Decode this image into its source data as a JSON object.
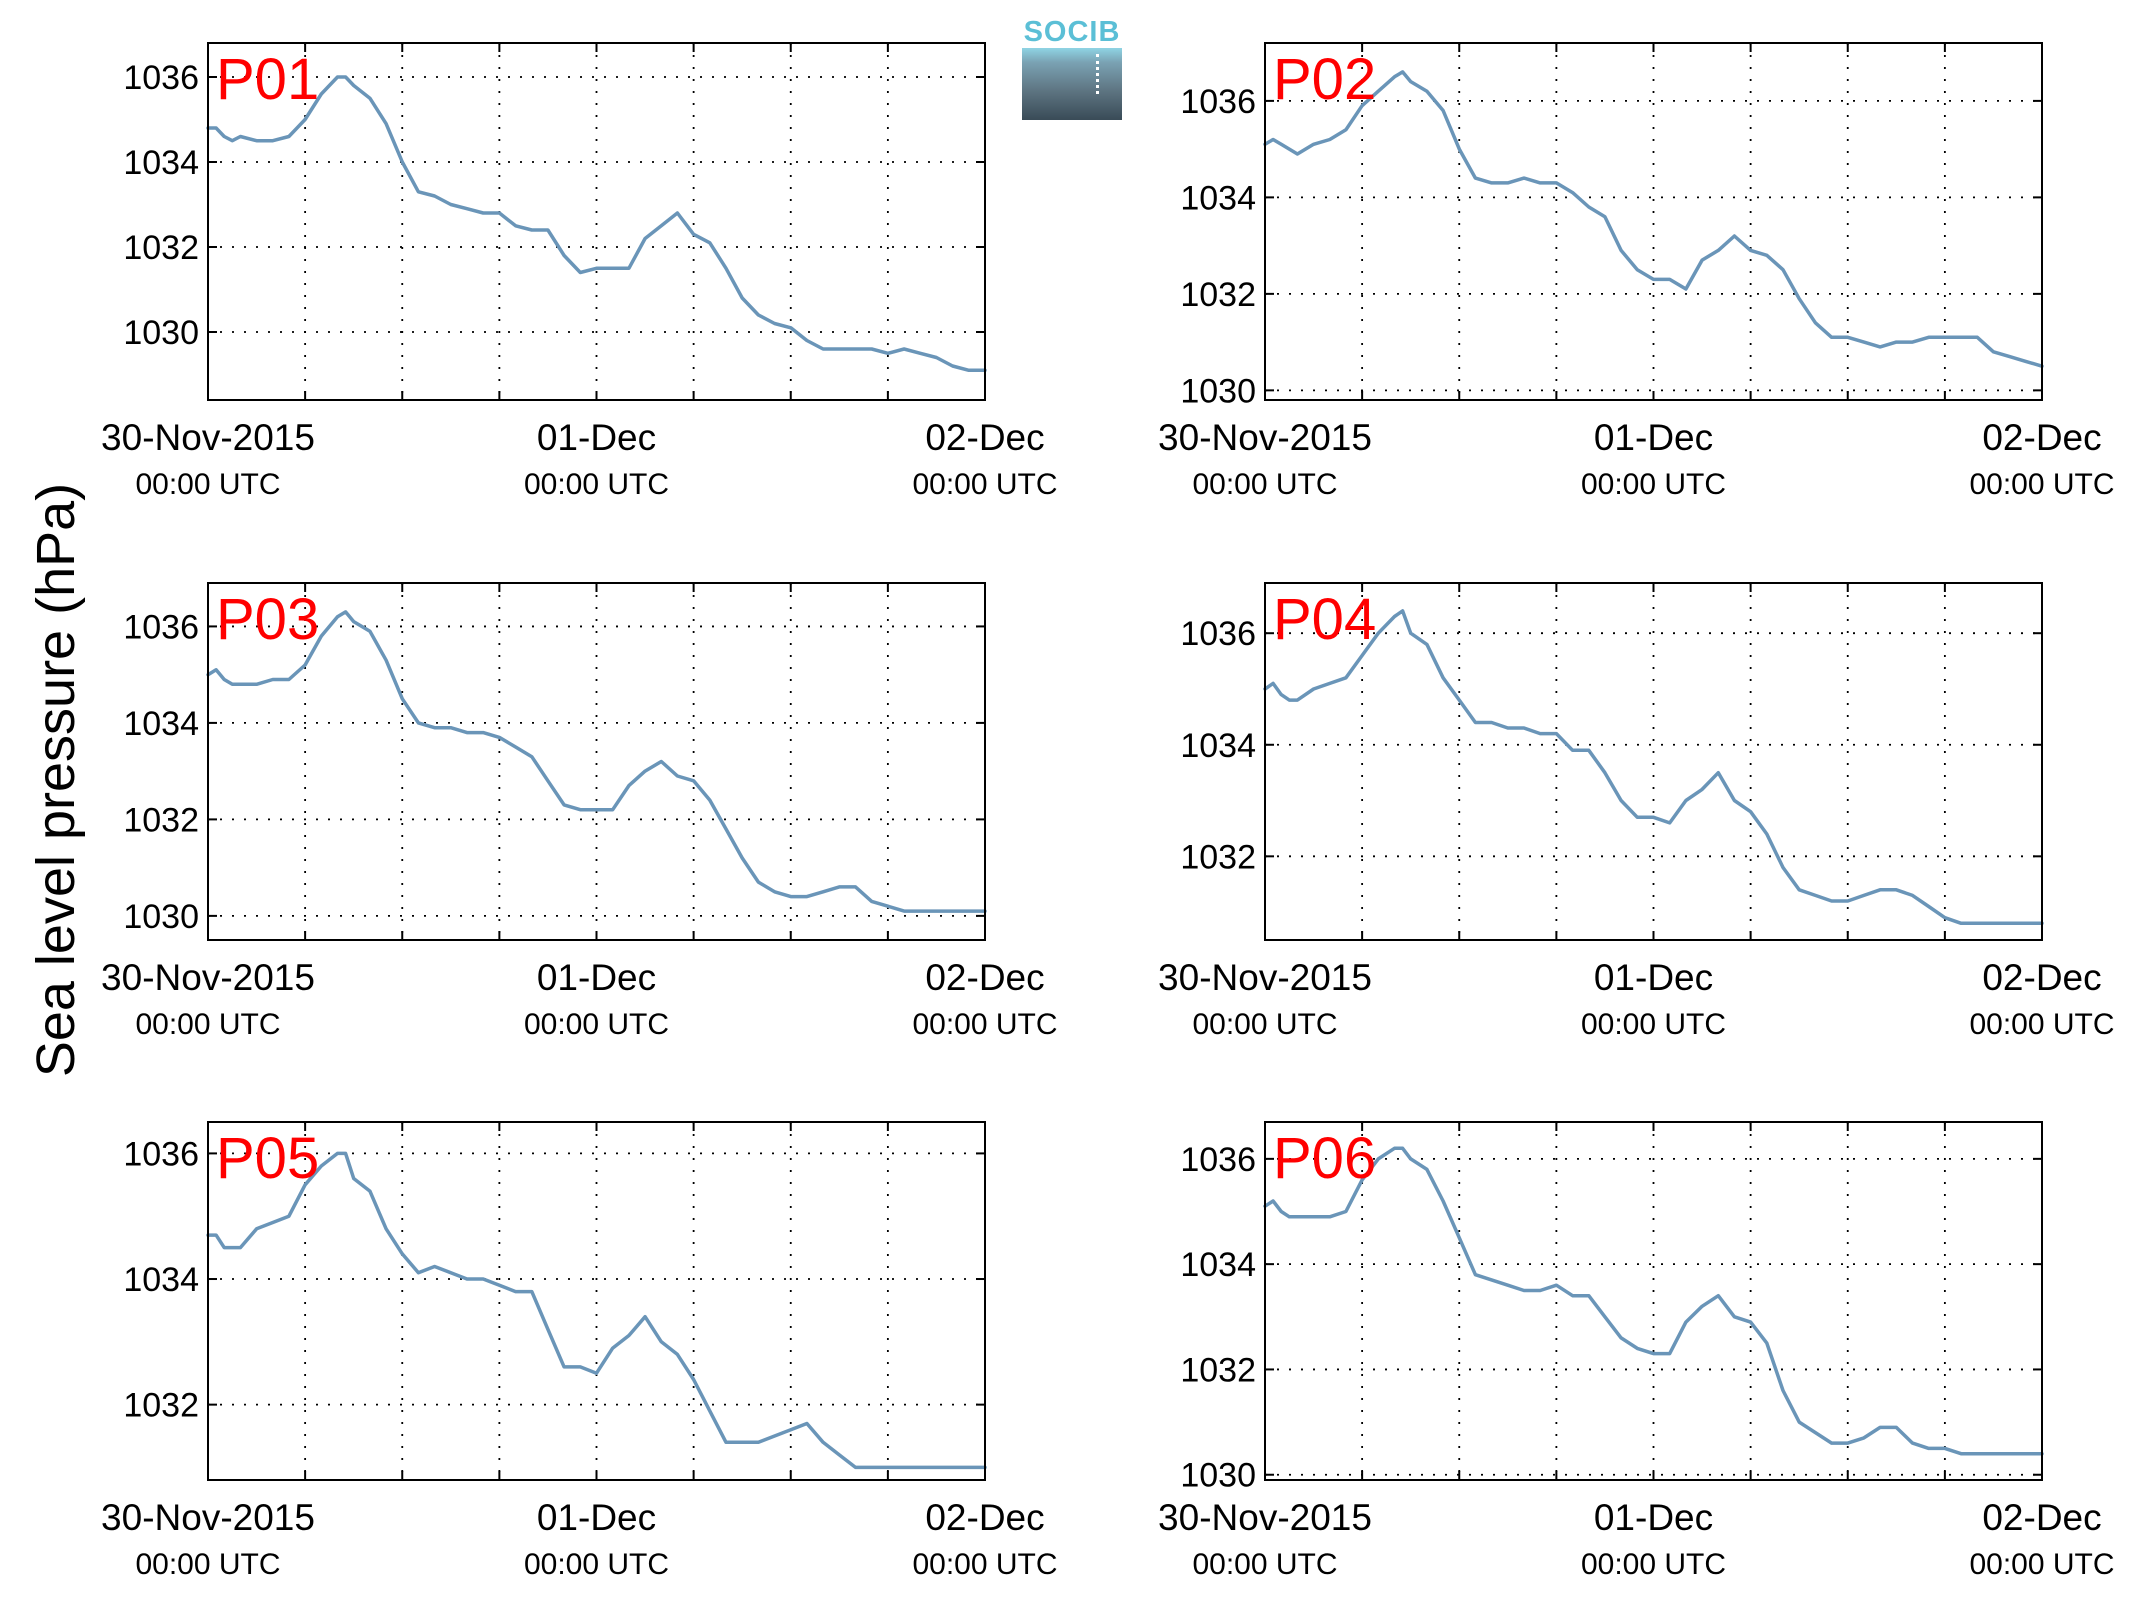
{
  "figure": {
    "ylabel": "Sea level pressure (hPa)",
    "logo_text": "SOCIB",
    "colors": {
      "line": "#6a95b8",
      "panel_label": "#ff0000",
      "axis": "#000000",
      "grid": "#000000"
    }
  },
  "chart_data": [
    {
      "type": "line",
      "panel": "P01",
      "xlim": [
        0,
        48
      ],
      "ylim": [
        1028.4,
        1036.8
      ],
      "yticks": [
        1030,
        1032,
        1034,
        1036
      ],
      "xticks": [
        0,
        6,
        12,
        18,
        24,
        30,
        36,
        42,
        48
      ],
      "xticklabels": [
        {
          "x": 0,
          "main": "30-Nov-2015",
          "sub": "00:00 UTC"
        },
        {
          "x": 24,
          "main": "01-Dec",
          "sub": "00:00 UTC"
        },
        {
          "x": 48,
          "main": "02-Dec",
          "sub": "00:00 UTC"
        }
      ],
      "grid": true,
      "series": [
        {
          "x": [
            0,
            0.5,
            1,
            1.5,
            2,
            3,
            4,
            5,
            6,
            7,
            8,
            8.5,
            9,
            10,
            11,
            12,
            13,
            14,
            15,
            16,
            17,
            18,
            19,
            20,
            21,
            22,
            23,
            24,
            25,
            26,
            27,
            28,
            29,
            30,
            31,
            32,
            33,
            34,
            35,
            36,
            37,
            38,
            39,
            40,
            41,
            42,
            43,
            44,
            45,
            46,
            47,
            48
          ],
          "y": [
            1034.8,
            1034.8,
            1034.6,
            1034.5,
            1034.6,
            1034.5,
            1034.5,
            1034.6,
            1035.0,
            1035.6,
            1036.0,
            1036.0,
            1035.8,
            1035.5,
            1034.9,
            1034.0,
            1033.3,
            1033.2,
            1033.0,
            1032.9,
            1032.8,
            1032.8,
            1032.5,
            1032.4,
            1032.4,
            1031.8,
            1031.4,
            1031.5,
            1031.5,
            1031.5,
            1032.2,
            1032.5,
            1032.8,
            1032.3,
            1032.1,
            1031.5,
            1030.8,
            1030.4,
            1030.2,
            1030.1,
            1029.8,
            1029.6,
            1029.6,
            1029.6,
            1029.6,
            1029.5,
            1029.6,
            1029.5,
            1029.4,
            1029.2,
            1029.1,
            1029.1
          ]
        }
      ]
    },
    {
      "type": "line",
      "panel": "P02",
      "xlim": [
        0,
        48
      ],
      "ylim": [
        1029.8,
        1037.2
      ],
      "yticks": [
        1030,
        1032,
        1034,
        1036
      ],
      "xticks": [
        0,
        6,
        12,
        18,
        24,
        30,
        36,
        42,
        48
      ],
      "xticklabels": [
        {
          "x": 0,
          "main": "30-Nov-2015",
          "sub": "00:00 UTC"
        },
        {
          "x": 24,
          "main": "01-Dec",
          "sub": "00:00 UTC"
        },
        {
          "x": 48,
          "main": "02-Dec",
          "sub": "00:00 UTC"
        }
      ],
      "grid": true,
      "series": [
        {
          "x": [
            0,
            0.5,
            1,
            1.5,
            2,
            3,
            4,
            5,
            6,
            7,
            8,
            8.5,
            9,
            10,
            11,
            12,
            13,
            14,
            15,
            16,
            17,
            18,
            19,
            20,
            21,
            22,
            23,
            24,
            25,
            26,
            27,
            28,
            29,
            30,
            31,
            32,
            33,
            34,
            35,
            36,
            37,
            38,
            39,
            40,
            41,
            42,
            43,
            44,
            45,
            46,
            47,
            48
          ],
          "y": [
            1035.1,
            1035.2,
            1035.1,
            1035.0,
            1034.9,
            1035.1,
            1035.2,
            1035.4,
            1035.9,
            1036.2,
            1036.5,
            1036.6,
            1036.4,
            1036.2,
            1035.8,
            1035.0,
            1034.4,
            1034.3,
            1034.3,
            1034.4,
            1034.3,
            1034.3,
            1034.1,
            1033.8,
            1033.6,
            1032.9,
            1032.5,
            1032.3,
            1032.3,
            1032.1,
            1032.7,
            1032.9,
            1033.2,
            1032.9,
            1032.8,
            1032.5,
            1031.9,
            1031.4,
            1031.1,
            1031.1,
            1031.0,
            1030.9,
            1031.0,
            1031.0,
            1031.1,
            1031.1,
            1031.1,
            1031.1,
            1030.8,
            1030.7,
            1030.6,
            1030.5
          ]
        }
      ]
    },
    {
      "type": "line",
      "panel": "P03",
      "xlim": [
        0,
        48
      ],
      "ylim": [
        1029.5,
        1036.9
      ],
      "yticks": [
        1030,
        1032,
        1034,
        1036
      ],
      "xticks": [
        0,
        6,
        12,
        18,
        24,
        30,
        36,
        42,
        48
      ],
      "xticklabels": [
        {
          "x": 0,
          "main": "30-Nov-2015",
          "sub": "00:00 UTC"
        },
        {
          "x": 24,
          "main": "01-Dec",
          "sub": "00:00 UTC"
        },
        {
          "x": 48,
          "main": "02-Dec",
          "sub": "00:00 UTC"
        }
      ],
      "grid": true,
      "series": [
        {
          "x": [
            0,
            0.5,
            1,
            1.5,
            2,
            3,
            4,
            5,
            6,
            7,
            8,
            8.5,
            9,
            10,
            11,
            12,
            13,
            14,
            15,
            16,
            17,
            18,
            19,
            20,
            21,
            22,
            23,
            24,
            25,
            26,
            27,
            28,
            29,
            30,
            31,
            32,
            33,
            34,
            35,
            36,
            37,
            38,
            39,
            40,
            41,
            42,
            43,
            44,
            45,
            46,
            47,
            48
          ],
          "y": [
            1035.0,
            1035.1,
            1034.9,
            1034.8,
            1034.8,
            1034.8,
            1034.9,
            1034.9,
            1035.2,
            1035.8,
            1036.2,
            1036.3,
            1036.1,
            1035.9,
            1035.3,
            1034.5,
            1034.0,
            1033.9,
            1033.9,
            1033.8,
            1033.8,
            1033.7,
            1033.5,
            1033.3,
            1032.8,
            1032.3,
            1032.2,
            1032.2,
            1032.2,
            1032.7,
            1033.0,
            1033.2,
            1032.9,
            1032.8,
            1032.4,
            1031.8,
            1031.2,
            1030.7,
            1030.5,
            1030.4,
            1030.4,
            1030.5,
            1030.6,
            1030.6,
            1030.3,
            1030.2,
            1030.1,
            1030.1,
            1030.1,
            1030.1,
            1030.1,
            1030.1
          ]
        }
      ]
    },
    {
      "type": "line",
      "panel": "P04",
      "xlim": [
        0,
        48
      ],
      "ylim": [
        1030.5,
        1036.9
      ],
      "yticks": [
        1032,
        1034,
        1036
      ],
      "xticks": [
        0,
        6,
        12,
        18,
        24,
        30,
        36,
        42,
        48
      ],
      "xticklabels": [
        {
          "x": 0,
          "main": "30-Nov-2015",
          "sub": "00:00 UTC"
        },
        {
          "x": 24,
          "main": "01-Dec",
          "sub": "00:00 UTC"
        },
        {
          "x": 48,
          "main": "02-Dec",
          "sub": "00:00 UTC"
        }
      ],
      "grid": true,
      "series": [
        {
          "x": [
            0,
            0.5,
            1,
            1.5,
            2,
            3,
            4,
            5,
            6,
            7,
            8,
            8.5,
            9,
            10,
            11,
            12,
            13,
            14,
            15,
            16,
            17,
            18,
            19,
            20,
            21,
            22,
            23,
            24,
            25,
            26,
            27,
            28,
            29,
            30,
            31,
            32,
            33,
            34,
            35,
            36,
            37,
            38,
            39,
            40,
            41,
            42,
            43,
            44,
            45,
            46,
            47,
            48
          ],
          "y": [
            1035.0,
            1035.1,
            1034.9,
            1034.8,
            1034.8,
            1035.0,
            1035.1,
            1035.2,
            1035.6,
            1036.0,
            1036.3,
            1036.4,
            1036.0,
            1035.8,
            1035.2,
            1034.8,
            1034.4,
            1034.4,
            1034.3,
            1034.3,
            1034.2,
            1034.2,
            1033.9,
            1033.9,
            1033.5,
            1033.0,
            1032.7,
            1032.7,
            1032.6,
            1033.0,
            1033.2,
            1033.5,
            1033.0,
            1032.8,
            1032.4,
            1031.8,
            1031.4,
            1031.3,
            1031.2,
            1031.2,
            1031.3,
            1031.4,
            1031.4,
            1031.3,
            1031.1,
            1030.9,
            1030.8,
            1030.8,
            1030.8,
            1030.8,
            1030.8,
            1030.8
          ]
        }
      ]
    },
    {
      "type": "line",
      "panel": "P05",
      "xlim": [
        0,
        48
      ],
      "ylim": [
        1030.8,
        1036.5
      ],
      "yticks": [
        1032,
        1034,
        1036
      ],
      "xticks": [
        0,
        6,
        12,
        18,
        24,
        30,
        36,
        42,
        48
      ],
      "xticklabels": [
        {
          "x": 0,
          "main": "30-Nov-2015",
          "sub": "00:00 UTC"
        },
        {
          "x": 24,
          "main": "01-Dec",
          "sub": "00:00 UTC"
        },
        {
          "x": 48,
          "main": "02-Dec",
          "sub": "00:00 UTC"
        }
      ],
      "grid": true,
      "series": [
        {
          "x": [
            0,
            0.5,
            1,
            1.5,
            2,
            3,
            4,
            5,
            6,
            7,
            8,
            8.5,
            9,
            10,
            11,
            12,
            13,
            14,
            15,
            16,
            17,
            18,
            19,
            20,
            21,
            22,
            23,
            24,
            25,
            26,
            27,
            28,
            29,
            30,
            31,
            32,
            33,
            34,
            35,
            36,
            37,
            38,
            39,
            40,
            41,
            42,
            43,
            44,
            45,
            46,
            47,
            48
          ],
          "y": [
            1034.7,
            1034.7,
            1034.5,
            1034.5,
            1034.5,
            1034.8,
            1034.9,
            1035.0,
            1035.5,
            1035.8,
            1036.0,
            1036.0,
            1035.6,
            1035.4,
            1034.8,
            1034.4,
            1034.1,
            1034.2,
            1034.1,
            1034.0,
            1034.0,
            1033.9,
            1033.8,
            1033.8,
            1033.2,
            1032.6,
            1032.6,
            1032.5,
            1032.9,
            1033.1,
            1033.4,
            1033.0,
            1032.8,
            1032.4,
            1031.9,
            1031.4,
            1031.4,
            1031.4,
            1031.5,
            1031.6,
            1031.7,
            1031.4,
            1031.2,
            1031.0,
            1031.0,
            1031.0,
            1031.0,
            1031.0,
            1031.0,
            1031.0,
            1031.0,
            1031.0
          ]
        }
      ]
    },
    {
      "type": "line",
      "panel": "P06",
      "xlim": [
        0,
        48
      ],
      "ylim": [
        1029.9,
        1036.7
      ],
      "yticks": [
        1030,
        1032,
        1034,
        1036
      ],
      "xticks": [
        0,
        6,
        12,
        18,
        24,
        30,
        36,
        42,
        48
      ],
      "xticklabels": [
        {
          "x": 0,
          "main": "30-Nov-2015",
          "sub": "00:00 UTC"
        },
        {
          "x": 24,
          "main": "01-Dec",
          "sub": "00:00 UTC"
        },
        {
          "x": 48,
          "main": "02-Dec",
          "sub": "00:00 UTC"
        }
      ],
      "grid": true,
      "series": [
        {
          "x": [
            0,
            0.5,
            1,
            1.5,
            2,
            3,
            4,
            5,
            6,
            7,
            8,
            8.5,
            9,
            10,
            11,
            12,
            13,
            14,
            15,
            16,
            17,
            18,
            19,
            20,
            21,
            22,
            23,
            24,
            25,
            26,
            27,
            28,
            29,
            30,
            31,
            32,
            33,
            34,
            35,
            36,
            37,
            38,
            39,
            40,
            41,
            42,
            43,
            44,
            45,
            46,
            47,
            48
          ],
          "y": [
            1035.1,
            1035.2,
            1035.0,
            1034.9,
            1034.9,
            1034.9,
            1034.9,
            1035.0,
            1035.6,
            1036.0,
            1036.2,
            1036.2,
            1036.0,
            1035.8,
            1035.2,
            1034.5,
            1033.8,
            1033.7,
            1033.6,
            1033.5,
            1033.5,
            1033.6,
            1033.4,
            1033.4,
            1033.0,
            1032.6,
            1032.4,
            1032.3,
            1032.3,
            1032.9,
            1033.2,
            1033.4,
            1033.0,
            1032.9,
            1032.5,
            1031.6,
            1031.0,
            1030.8,
            1030.6,
            1030.6,
            1030.7,
            1030.9,
            1030.9,
            1030.6,
            1030.5,
            1030.5,
            1030.4,
            1030.4,
            1030.4,
            1030.4,
            1030.4,
            1030.4
          ]
        }
      ]
    }
  ]
}
